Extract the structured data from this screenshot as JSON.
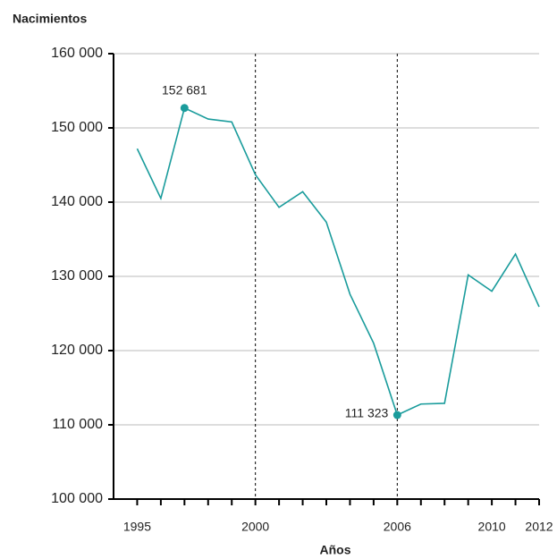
{
  "chart_data": {
    "type": "line",
    "ylabel": "Nacimientos",
    "xlabel": "Años",
    "x": [
      1995,
      1996,
      1997,
      1998,
      1999,
      2000,
      2001,
      2002,
      2003,
      2004,
      2005,
      2006,
      2007,
      2008,
      2009,
      2010,
      2011,
      2012
    ],
    "series": [
      {
        "color": "#1a9c9c",
        "values": [
          147200,
          140500,
          152681,
          151200,
          150800,
          143700,
          139300,
          141400,
          137300,
          127600,
          121000,
          111323,
          112800,
          112900,
          130200,
          128000,
          133000,
          125900
        ],
        "value_labels": [
          null,
          null,
          "152 681",
          null,
          null,
          null,
          null,
          null,
          null,
          null,
          null,
          "111 323",
          null,
          null,
          null,
          null,
          null,
          null
        ]
      }
    ],
    "xlim": [
      1994,
      2012
    ],
    "xticks": [
      1995,
      2000,
      2006,
      2010,
      2012
    ],
    "xminorticks": [
      1995,
      1996,
      1997,
      1998,
      1999,
      2000,
      2001,
      2002,
      2003,
      2004,
      2005,
      2006,
      2007,
      2008,
      2009,
      2010,
      2011,
      2012
    ],
    "vlines": [
      2000,
      2006
    ],
    "ylim": [
      100000,
      160000
    ],
    "yticks": [
      {
        "value": 100000,
        "label": "100 000"
      },
      {
        "value": 110000,
        "label": "110 000"
      },
      {
        "value": 120000,
        "label": "120 000"
      },
      {
        "value": 130000,
        "label": "130 000"
      },
      {
        "value": 140000,
        "label": "140 000"
      },
      {
        "value": 150000,
        "label": "150 000"
      },
      {
        "value": 160000,
        "label": "160 000"
      }
    ],
    "grid": true
  }
}
